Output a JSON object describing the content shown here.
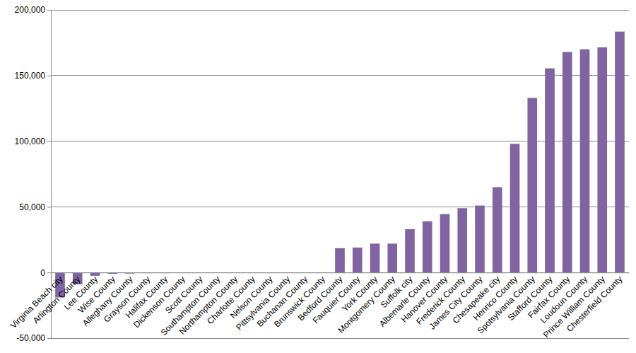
{
  "chart_data": {
    "type": "bar",
    "categories": [
      "Virginia Beach city",
      "Arlington County",
      "Lee County",
      "Wise County",
      "Alleghany County",
      "Grayson County",
      "Halifax County",
      "Dickenson County",
      "Scott County",
      "Southampton County",
      "Northampton County",
      "Charlotte County",
      "Nelson County",
      "Pittsylvania County",
      "Buchanan County",
      "Brunswick County",
      "Bedford County",
      "Fauquier County",
      "York County",
      "Montgomery County",
      "Suffolk city",
      "Albemarle County",
      "Hanover County",
      "Frederick County",
      "James City County",
      "Chesapeake city",
      "Henrico County",
      "Spotsylvania County",
      "Stafford County",
      "Fairfax County",
      "Loudoun County",
      "Prince William County",
      "Chesterfield County"
    ],
    "values": [
      -19000,
      -9000,
      -2500,
      -1000,
      -800,
      -500,
      -500,
      -400,
      -300,
      -300,
      -300,
      -300,
      -200,
      -200,
      -200,
      -200,
      18500,
      19000,
      22000,
      22000,
      33000,
      39000,
      44500,
      49000,
      51000,
      65000,
      98000,
      133000,
      155500,
      168000,
      170000,
      171500,
      183500
    ],
    "color": "#8064a2",
    "ylim": [
      -50000,
      200000
    ],
    "yticks": [
      {
        "value": -50000,
        "label": "-50,000"
      },
      0,
      {
        "value": 50000,
        "label": "50,000"
      },
      {
        "value": 100000,
        "label": "100,000"
      },
      {
        "value": 150000,
        "label": "150,000"
      },
      {
        "value": 200000,
        "label": "200,000"
      }
    ],
    "grid": true
  }
}
